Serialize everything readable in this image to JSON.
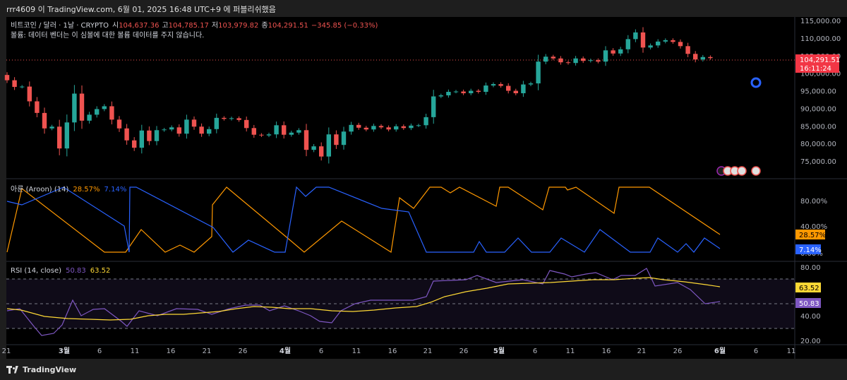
{
  "header": {
    "published": "rrr4609 이 TradingView.com, 6월 01, 2025 16:48 UTC+9 에 퍼블리쉬했음"
  },
  "legend": {
    "symbol": "비트코인 / 달러 · 1날 · CRYPTO",
    "open_label": "시",
    "open_value": "104,637.36",
    "high_label": "고",
    "high_value": "104,785.17",
    "low_label": "저",
    "low_value": "103,979.82",
    "close_label": "종",
    "close_value": "104,291.51",
    "change": "−345.85 (−0.33%)",
    "volume_note": "볼륨: 데이터 벤더는 이 심볼에 대한 볼륨 데이터를 주지 않습니다."
  },
  "price_badge": {
    "value": "104,291.51",
    "countdown": "16:11:24"
  },
  "aroon_legend": {
    "name": "아룬 (Aroon) (14)",
    "up": "28.57%",
    "down": "7.14%"
  },
  "rsi_legend": {
    "name": "RSI (14, close)",
    "rsi": "50.83",
    "ma": "63.52"
  },
  "footer": {
    "brand": "TradingView"
  },
  "colors": {
    "up": "#26a69a",
    "down": "#ef5350",
    "aroon_up": "#ff9800",
    "aroon_down": "#2962ff",
    "rsi": "#7e57c2",
    "rsi_ma": "#fdd835",
    "badge_red": "#f23645"
  },
  "chart_data": [
    {
      "type": "candlestick",
      "title": "비트코인 / 달러 · 1날 · CRYPTO",
      "x_ticks": [
        "21",
        "3월",
        "6",
        "11",
        "16",
        "21",
        "26",
        "4월",
        "6",
        "11",
        "16",
        "21",
        "26",
        "5월",
        "6",
        "11",
        "16",
        "21",
        "26",
        "6월",
        "6",
        "11"
      ],
      "y_ticks": [
        "115,000.00",
        "110,000.00",
        "105,000.00",
        "100,000.00",
        "95,000.00",
        "90,000.00",
        "85,000.00",
        "80,000.00",
        "75,000.00"
      ],
      "ylim": [
        71000,
        116000
      ],
      "start_date": "2025-02-20",
      "close_series": [
        98000,
        96100,
        96200,
        92000,
        88700,
        84300,
        84800,
        78600,
        86000,
        94200,
        86500,
        88200,
        89800,
        90600,
        86800,
        84300,
        80900,
        78800,
        83700,
        80700,
        83800,
        84000,
        84600,
        82800,
        86800,
        84800,
        82800,
        84100,
        87300,
        87000,
        87200,
        86700,
        84400,
        82500,
        82300,
        82600,
        85200,
        82500,
        83100,
        83800,
        78200,
        79200,
        76300,
        82600,
        79600,
        83400,
        85300,
        84500,
        84000,
        85000,
        84600,
        84000,
        84900,
        84400,
        85100,
        85200,
        87500,
        93400,
        93700,
        94700,
        94800,
        94300,
        95000,
        94700,
        96500,
        96900,
        96400,
        95000,
        94300,
        96800,
        97100,
        103300,
        104700,
        104200,
        103100,
        102900,
        104200,
        103500,
        103700,
        103300,
        106500,
        105600,
        106800,
        109700,
        111600,
        107300,
        107900,
        109000,
        109400,
        108900,
        107700,
        105500,
        103900,
        104600,
        104291.51
      ]
    },
    {
      "type": "line",
      "title": "아룬 (Aroon) (14)",
      "y_ticks": [
        "80.00%",
        "40.00%",
        "0.00%"
      ],
      "ylim": [
        0,
        100
      ],
      "series": [
        {
          "name": "Aroon Up",
          "last": 28.57,
          "color": "#ff9800"
        },
        {
          "name": "Aroon Down",
          "last": 7.14,
          "color": "#2962ff"
        }
      ]
    },
    {
      "type": "line",
      "title": "RSI (14, close)",
      "y_ticks": [
        "80.00",
        "40.00",
        "20.00"
      ],
      "bands": [
        70,
        50,
        30
      ],
      "ylim": [
        15,
        84
      ],
      "series": [
        {
          "name": "RSI",
          "last": 50.83,
          "color": "#7e57c2"
        },
        {
          "name": "RSI-based MA",
          "last": 63.52,
          "color": "#fdd835"
        }
      ]
    }
  ]
}
